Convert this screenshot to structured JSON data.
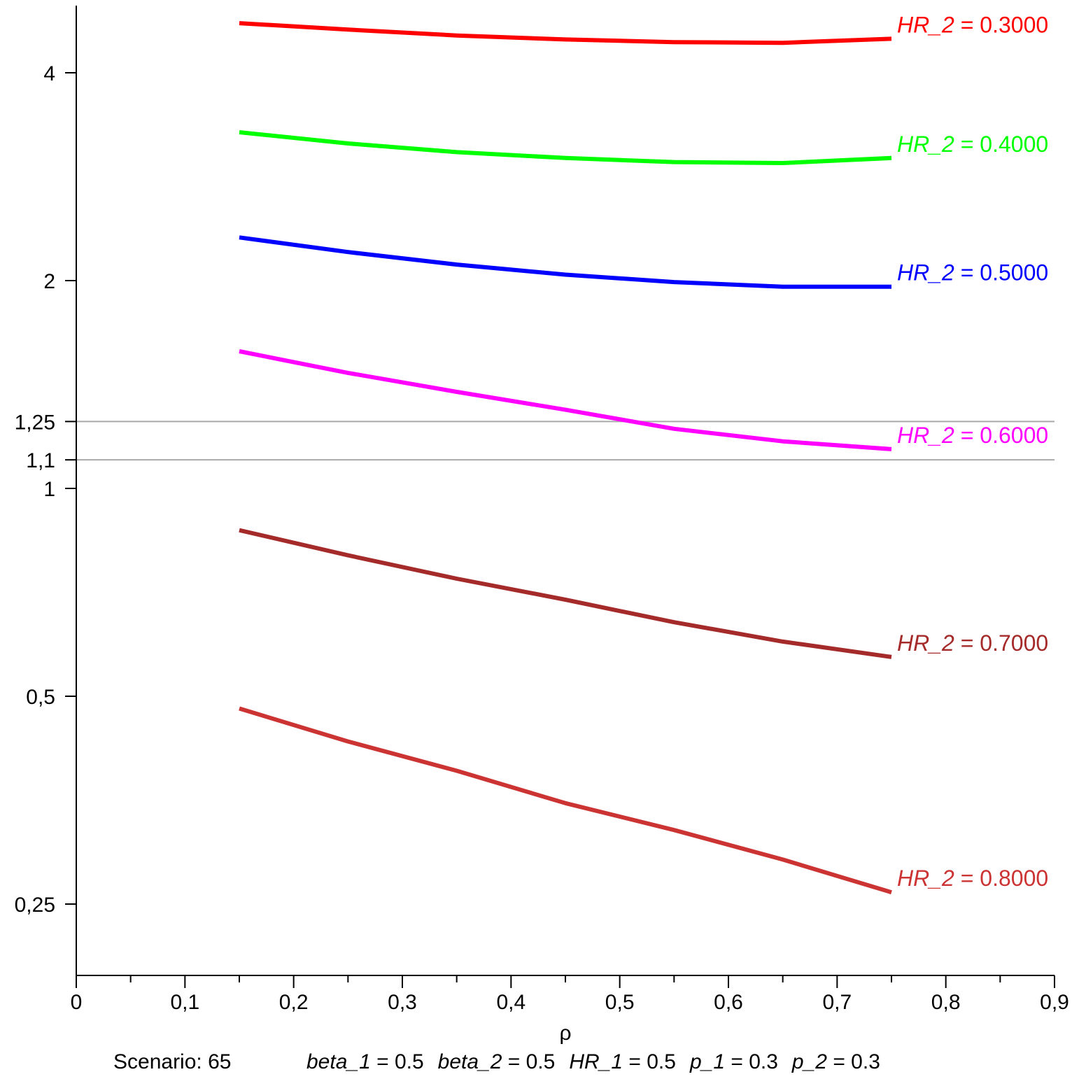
{
  "chart_data": {
    "type": "line",
    "y_scale": "log2",
    "xlabel": "ρ",
    "xlim": [
      0,
      0.9
    ],
    "ylim": [
      0.2,
      4.6
    ],
    "x_ticks": [
      {
        "value": 0,
        "label": "0"
      },
      {
        "value": 0.1,
        "label": "0,1"
      },
      {
        "value": 0.2,
        "label": "0,2"
      },
      {
        "value": 0.3,
        "label": "0,3"
      },
      {
        "value": 0.4,
        "label": "0,4"
      },
      {
        "value": 0.5,
        "label": "0,5"
      },
      {
        "value": 0.6,
        "label": "0,6"
      },
      {
        "value": 0.7,
        "label": "0,7"
      },
      {
        "value": 0.8,
        "label": "0,8"
      },
      {
        "value": 0.9,
        "label": "0,9"
      }
    ],
    "y_ticks": [
      {
        "value": 4,
        "label": "4"
      },
      {
        "value": 2,
        "label": "2"
      },
      {
        "value": 1.25,
        "label": "1,25"
      },
      {
        "value": 1.1,
        "label": "1,1"
      },
      {
        "value": 1,
        "label": "1"
      },
      {
        "value": 0.5,
        "label": "0,5"
      },
      {
        "value": 0.25,
        "label": "0,25"
      }
    ],
    "reference_lines": [
      1.25,
      1.1
    ],
    "x": [
      0.15,
      0.25,
      0.35,
      0.45,
      0.55,
      0.65,
      0.75
    ],
    "series": [
      {
        "name": "HR_2",
        "value_label": "0.3000",
        "color": "#ff0000",
        "values": [
          4.72,
          4.62,
          4.53,
          4.47,
          4.43,
          4.42,
          4.48
        ]
      },
      {
        "name": "HR_2",
        "value_label": "0.4000",
        "color": "#00ff00",
        "values": [
          3.28,
          3.16,
          3.07,
          3.01,
          2.97,
          2.96,
          3.01
        ]
      },
      {
        "name": "HR_2",
        "value_label": "0.5000",
        "color": "#0000ff",
        "values": [
          2.31,
          2.2,
          2.11,
          2.04,
          1.99,
          1.96,
          1.96
        ]
      },
      {
        "name": "HR_2",
        "value_label": "0.6000",
        "color": "#ff00ff",
        "values": [
          1.58,
          1.47,
          1.38,
          1.3,
          1.22,
          1.17,
          1.14
        ]
      },
      {
        "name": "HR_2",
        "value_label": "0.7000",
        "color": "#a52a2a",
        "values": [
          0.87,
          0.8,
          0.74,
          0.69,
          0.64,
          0.6,
          0.57
        ]
      },
      {
        "name": "HR_2",
        "value_label": "0.8000",
        "color": "#cc3333",
        "values": [
          0.48,
          0.43,
          0.39,
          0.35,
          0.32,
          0.29,
          0.26
        ]
      }
    ]
  },
  "caption": {
    "scenario": "Scenario: 65",
    "params": [
      {
        "name": "beta_1",
        "value": "0.5"
      },
      {
        "name": "beta_2",
        "value": "0.5"
      },
      {
        "name": "HR_1",
        "value": "0.5"
      },
      {
        "name": "p_1",
        "value": "0.3"
      },
      {
        "name": "p_2",
        "value": "0.3"
      }
    ]
  }
}
